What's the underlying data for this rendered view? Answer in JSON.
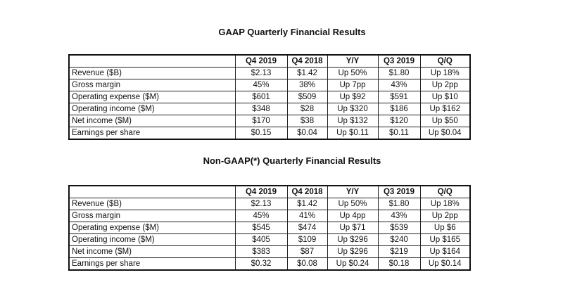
{
  "tables": [
    {
      "title": "GAAP Quarterly Financial Results",
      "headers": [
        "",
        "Q4 2019",
        "Q4 2018",
        "Y/Y",
        "Q3 2019",
        "Q/Q"
      ],
      "rows": [
        [
          "Revenue ($B)",
          "$2.13",
          "$1.42",
          "Up 50%",
          "$1.80",
          "Up 18%"
        ],
        [
          "Gross margin",
          "45%",
          "38%",
          "Up 7pp",
          "43%",
          "Up 2pp"
        ],
        [
          "Operating expense ($M)",
          "$601",
          "$509",
          "Up $92",
          "$591",
          "Up $10"
        ],
        [
          "Operating income ($M)",
          "$348",
          "$28",
          "Up $320",
          "$186",
          "Up $162"
        ],
        [
          "Net income ($M)",
          "$170",
          "$38",
          "Up $132",
          "$120",
          "Up $50"
        ],
        [
          "Earnings per share",
          "$0.15",
          "$0.04",
          "Up $0.11",
          "$0.11",
          "Up $0.04"
        ]
      ]
    },
    {
      "title": "Non-GAAP(*) Quarterly Financial Results",
      "headers": [
        "",
        "Q4 2019",
        "Q4 2018",
        "Y/Y",
        "Q3 2019",
        "Q/Q"
      ],
      "rows": [
        [
          "Revenue ($B)",
          "$2.13",
          "$1.42",
          "Up 50%",
          "$1.80",
          "Up 18%"
        ],
        [
          "Gross margin",
          "45%",
          "41%",
          "Up 4pp",
          "43%",
          "Up 2pp"
        ],
        [
          "Operating expense ($M)",
          "$545",
          "$474",
          "Up $71",
          "$539",
          "Up $6"
        ],
        [
          "Operating income ($M)",
          "$405",
          "$109",
          "Up $296",
          "$240",
          "Up $165"
        ],
        [
          "Net income ($M)",
          "$383",
          "$87",
          "Up $296",
          "$219",
          "Up $164"
        ],
        [
          "Earnings per share",
          "$0.32",
          "$0.08",
          "Up $0.24",
          "$0.18",
          "Up $0.14"
        ]
      ]
    }
  ]
}
